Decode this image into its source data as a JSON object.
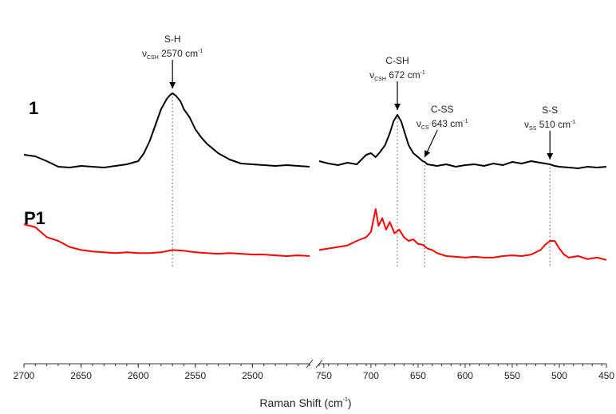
{
  "chart_data": {
    "type": "line",
    "title": "",
    "xlabel": "Raman Shift (cm",
    "xlabel_sup": "-1",
    "xlabel_close": ")",
    "x_reversed": true,
    "broken_axis": true,
    "panels": [
      {
        "xlim": [
          2700,
          2450
        ],
        "ticks": [
          2700,
          2650,
          2600,
          2550,
          2500
        ]
      },
      {
        "xlim": [
          755,
          450
        ],
        "ticks": [
          750,
          700,
          650,
          600,
          550,
          500,
          450
        ]
      }
    ],
    "y_axis_shown": false,
    "grid": false,
    "series": [
      {
        "name": "1",
        "color": "#000000",
        "x": [
          2700,
          2690,
          2680,
          2670,
          2660,
          2650,
          2640,
          2630,
          2620,
          2610,
          2600,
          2595,
          2590,
          2585,
          2580,
          2575,
          2572,
          2570,
          2567,
          2563,
          2560,
          2555,
          2550,
          2545,
          2540,
          2530,
          2520,
          2510,
          2500,
          2490,
          2480,
          2470,
          2460,
          2450,
          755,
          745,
          735,
          725,
          715,
          705,
          700,
          695,
          690,
          685,
          680,
          676,
          672,
          668,
          664,
          660,
          655,
          650,
          645,
          643,
          640,
          630,
          620,
          610,
          600,
          590,
          580,
          570,
          560,
          550,
          540,
          530,
          520,
          515,
          510,
          505,
          500,
          490,
          480,
          470,
          460,
          450
        ],
        "y": [
          0.18,
          0.16,
          0.1,
          0.03,
          0.02,
          0.04,
          0.03,
          0.02,
          0.04,
          0.06,
          0.1,
          0.2,
          0.35,
          0.55,
          0.75,
          0.88,
          0.93,
          0.95,
          0.92,
          0.85,
          0.75,
          0.65,
          0.5,
          0.4,
          0.32,
          0.2,
          0.12,
          0.07,
          0.06,
          0.05,
          0.04,
          0.05,
          0.04,
          0.03,
          0.1,
          0.07,
          0.05,
          0.08,
          0.06,
          0.18,
          0.2,
          0.15,
          0.22,
          0.3,
          0.45,
          0.6,
          0.68,
          0.6,
          0.45,
          0.3,
          0.2,
          0.15,
          0.1,
          0.09,
          0.06,
          0.04,
          0.06,
          0.03,
          0.05,
          0.06,
          0.04,
          0.07,
          0.05,
          0.09,
          0.07,
          0.1,
          0.08,
          0.07,
          0.06,
          0.04,
          0.03,
          0.02,
          0.01,
          0.03,
          0.02,
          0.03
        ]
      },
      {
        "name": "P1",
        "color": "#ff0000",
        "x": [
          2700,
          2690,
          2680,
          2670,
          2660,
          2650,
          2640,
          2630,
          2620,
          2610,
          2600,
          2590,
          2580,
          2570,
          2560,
          2550,
          2540,
          2530,
          2520,
          2510,
          2500,
          2490,
          2480,
          2470,
          2460,
          2450,
          755,
          745,
          735,
          725,
          715,
          705,
          700,
          695,
          692,
          688,
          684,
          680,
          675,
          670,
          665,
          660,
          655,
          650,
          645,
          640,
          635,
          630,
          620,
          610,
          600,
          590,
          580,
          570,
          560,
          550,
          540,
          530,
          520,
          515,
          510,
          505,
          500,
          495,
          490,
          480,
          470,
          460,
          450
        ],
        "y": [
          0.62,
          0.58,
          0.45,
          0.4,
          0.32,
          0.28,
          0.26,
          0.25,
          0.24,
          0.25,
          0.24,
          0.24,
          0.25,
          0.28,
          0.27,
          0.25,
          0.24,
          0.23,
          0.24,
          0.23,
          0.22,
          0.22,
          0.21,
          0.2,
          0.21,
          0.2,
          0.28,
          0.3,
          0.32,
          0.34,
          0.4,
          0.45,
          0.52,
          0.82,
          0.6,
          0.7,
          0.55,
          0.65,
          0.5,
          0.55,
          0.45,
          0.4,
          0.42,
          0.36,
          0.35,
          0.3,
          0.28,
          0.24,
          0.2,
          0.19,
          0.18,
          0.19,
          0.18,
          0.18,
          0.2,
          0.21,
          0.2,
          0.22,
          0.28,
          0.35,
          0.4,
          0.4,
          0.3,
          0.22,
          0.18,
          0.2,
          0.16,
          0.18,
          0.15
        ]
      }
    ],
    "series_labels": [
      {
        "text": "1",
        "series": "1"
      },
      {
        "text": "P1",
        "series": "P1"
      }
    ],
    "annotations": [
      {
        "label": "S-H",
        "mode": "ν",
        "mode_sub": "CSH",
        "value": "2570 cm",
        "unit_sup": "-1",
        "x": 2570,
        "series": "1"
      },
      {
        "label": "C-SH",
        "mode": "ν",
        "mode_sub": "CSH",
        "value": "672 cm",
        "unit_sup": "-1",
        "x": 672,
        "series": "1"
      },
      {
        "label": "C-SS",
        "mode": "ν",
        "mode_sub": "CS",
        "value": "643 cm",
        "unit_sup": "-1",
        "x": 643,
        "series": "1"
      },
      {
        "label": "S-S",
        "mode": "ν",
        "mode_sub": "SS",
        "value": "510 cm",
        "unit_sup": "-1",
        "x": 510,
        "series": "1"
      }
    ]
  }
}
